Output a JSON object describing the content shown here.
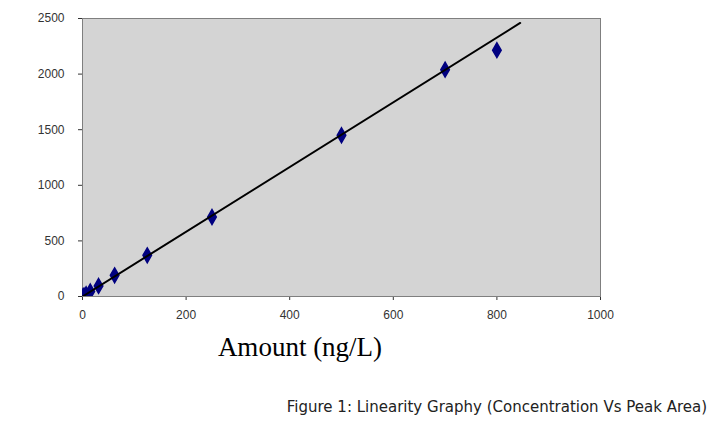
{
  "chart_data": {
    "type": "scatter",
    "xlabel": "Amount (ng/L)",
    "caption": "Figure 1: Linearity Graphy (Concentration Vs Peak Area)",
    "series": [
      {
        "type": "scatter",
        "color": "#000080",
        "marker": "diamond",
        "x": [
          1,
          3,
          7,
          15,
          31,
          62,
          125,
          250,
          500,
          700,
          800
        ],
        "values": [
          3,
          8,
          20,
          45,
          95,
          190,
          370,
          715,
          1450,
          2040,
          2215
        ]
      },
      {
        "type": "line",
        "color": "#000000",
        "line_style": "solid",
        "x": [
          0,
          845
        ],
        "values": [
          0,
          2460
        ]
      }
    ],
    "xlim": [
      0,
      1000
    ],
    "xticks": [
      0,
      200,
      400,
      600,
      800,
      1000
    ],
    "ylim": [
      0,
      2500
    ],
    "yticks": [
      0,
      500,
      1000,
      1500,
      2000,
      2500
    ],
    "grid": false
  }
}
